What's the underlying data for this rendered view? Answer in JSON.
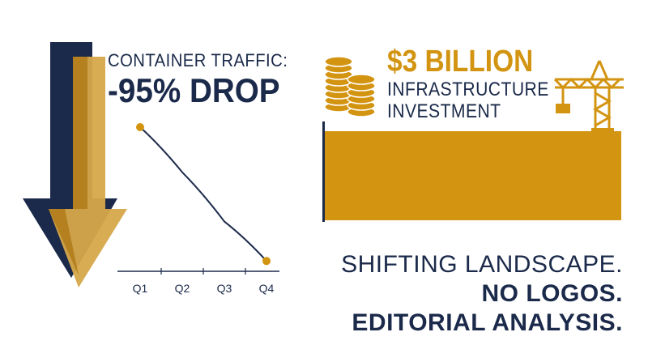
{
  "colors": {
    "navy": "#1b2a4a",
    "gold": "#d39412",
    "gold_dark": "#b07a17",
    "background": "#ffffff"
  },
  "traffic": {
    "label": "CONTAINER TRAFFIC:",
    "value": "-95% DROP"
  },
  "investment": {
    "amount": "$3 BILLION",
    "line1": "INFRASTRUCTURE",
    "line2": "INVESTMENT"
  },
  "tagline": {
    "line1": "SHIFTING LANDSCAPE.",
    "line2": "NO LOGOS.",
    "line3": "EDITORIAL ANALYSIS."
  },
  "icons": [
    "down-arrow-icon",
    "coin-stack-icon",
    "construction-crane-icon"
  ],
  "chart_data": {
    "type": "line",
    "categories": [
      "Q1",
      "Q2",
      "Q3",
      "Q4"
    ],
    "values": [
      100,
      68,
      33,
      5
    ],
    "ylim": [
      0,
      100
    ],
    "grid": false,
    "title": "",
    "xlabel": "",
    "ylabel": ""
  }
}
